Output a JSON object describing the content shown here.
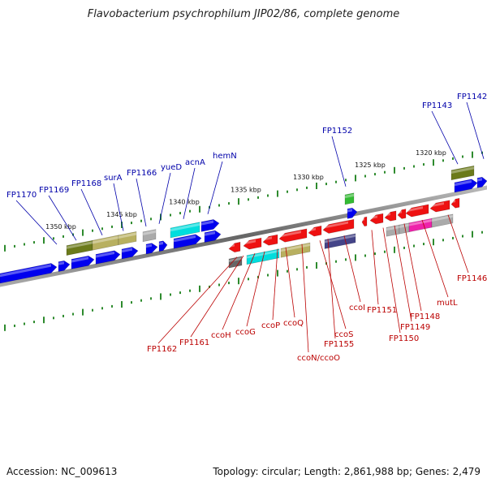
{
  "title": "Flavobacterium psychrophilum JIP02/86, complete genome",
  "footer": {
    "accession": "Accession: NC_009613",
    "summary": "Topology: circular; Length: 2,861,988 bp; Genes: 2,479"
  },
  "colors": {
    "backbone": "#888888",
    "tick_outer": "#2e8b2e",
    "label_outer": "#0000aa",
    "label_inner": "#bb0000",
    "forward_gene": "#0000ee",
    "reverse_gene": "#ee1111"
  },
  "scale": {
    "ticks": [
      {
        "label": "1350 kbp"
      },
      {
        "label": "1345 kbp"
      },
      {
        "label": "1340 kbp"
      },
      {
        "label": "1335 kbp"
      },
      {
        "label": "1330 kbp"
      },
      {
        "label": "1325 kbp"
      },
      {
        "label": "1320 kbp"
      }
    ]
  },
  "genes_outer": [
    {
      "label": "FP1170",
      "color": "#0000ee"
    },
    {
      "label": "FP1169",
      "color": "#6b7a1a"
    },
    {
      "label": "FP1168",
      "color": "#b8b060"
    },
    {
      "label": "surA",
      "color": "#b8b060"
    },
    {
      "label": "FP1166",
      "color": "#aaaaaa"
    },
    {
      "label": "yueD",
      "color": "#0000ee"
    },
    {
      "label": "acnA",
      "color": "#00dddd"
    },
    {
      "label": "hemN",
      "color": "#0000ee"
    },
    {
      "label": "FP1152",
      "color": "#33bb33"
    },
    {
      "label": "FP1143",
      "color": "#6b7a1a"
    },
    {
      "label": "FP1142",
      "color": "#0000ee"
    }
  ],
  "genes_inner": [
    {
      "label": "FP1162",
      "color": "#666666"
    },
    {
      "label": "FP1161",
      "color": "#ee1111"
    },
    {
      "label": "ccoH",
      "color": "#ee1111"
    },
    {
      "label": "ccoG",
      "color": "#00dddd"
    },
    {
      "label": "ccoP",
      "color": "#b8b060"
    },
    {
      "label": "ccoQ",
      "color": "#ee1111"
    },
    {
      "label": "ccoN/ccoO",
      "color": "#ee1111"
    },
    {
      "label": "ccoS",
      "color": "#444488"
    },
    {
      "label": "FP1155",
      "color": "#ee1111"
    },
    {
      "label": "ccoI",
      "color": "#ee1111"
    },
    {
      "label": "FP1151",
      "color": "#ee1111"
    },
    {
      "label": "FP1150",
      "color": "#aaaaaa"
    },
    {
      "label": "FP1149",
      "color": "#ee1111"
    },
    {
      "label": "FP1148",
      "color": "#ee22aa"
    },
    {
      "label": "mutL",
      "color": "#ee1111"
    },
    {
      "label": "FP1146",
      "color": "#aaaaaa"
    }
  ]
}
